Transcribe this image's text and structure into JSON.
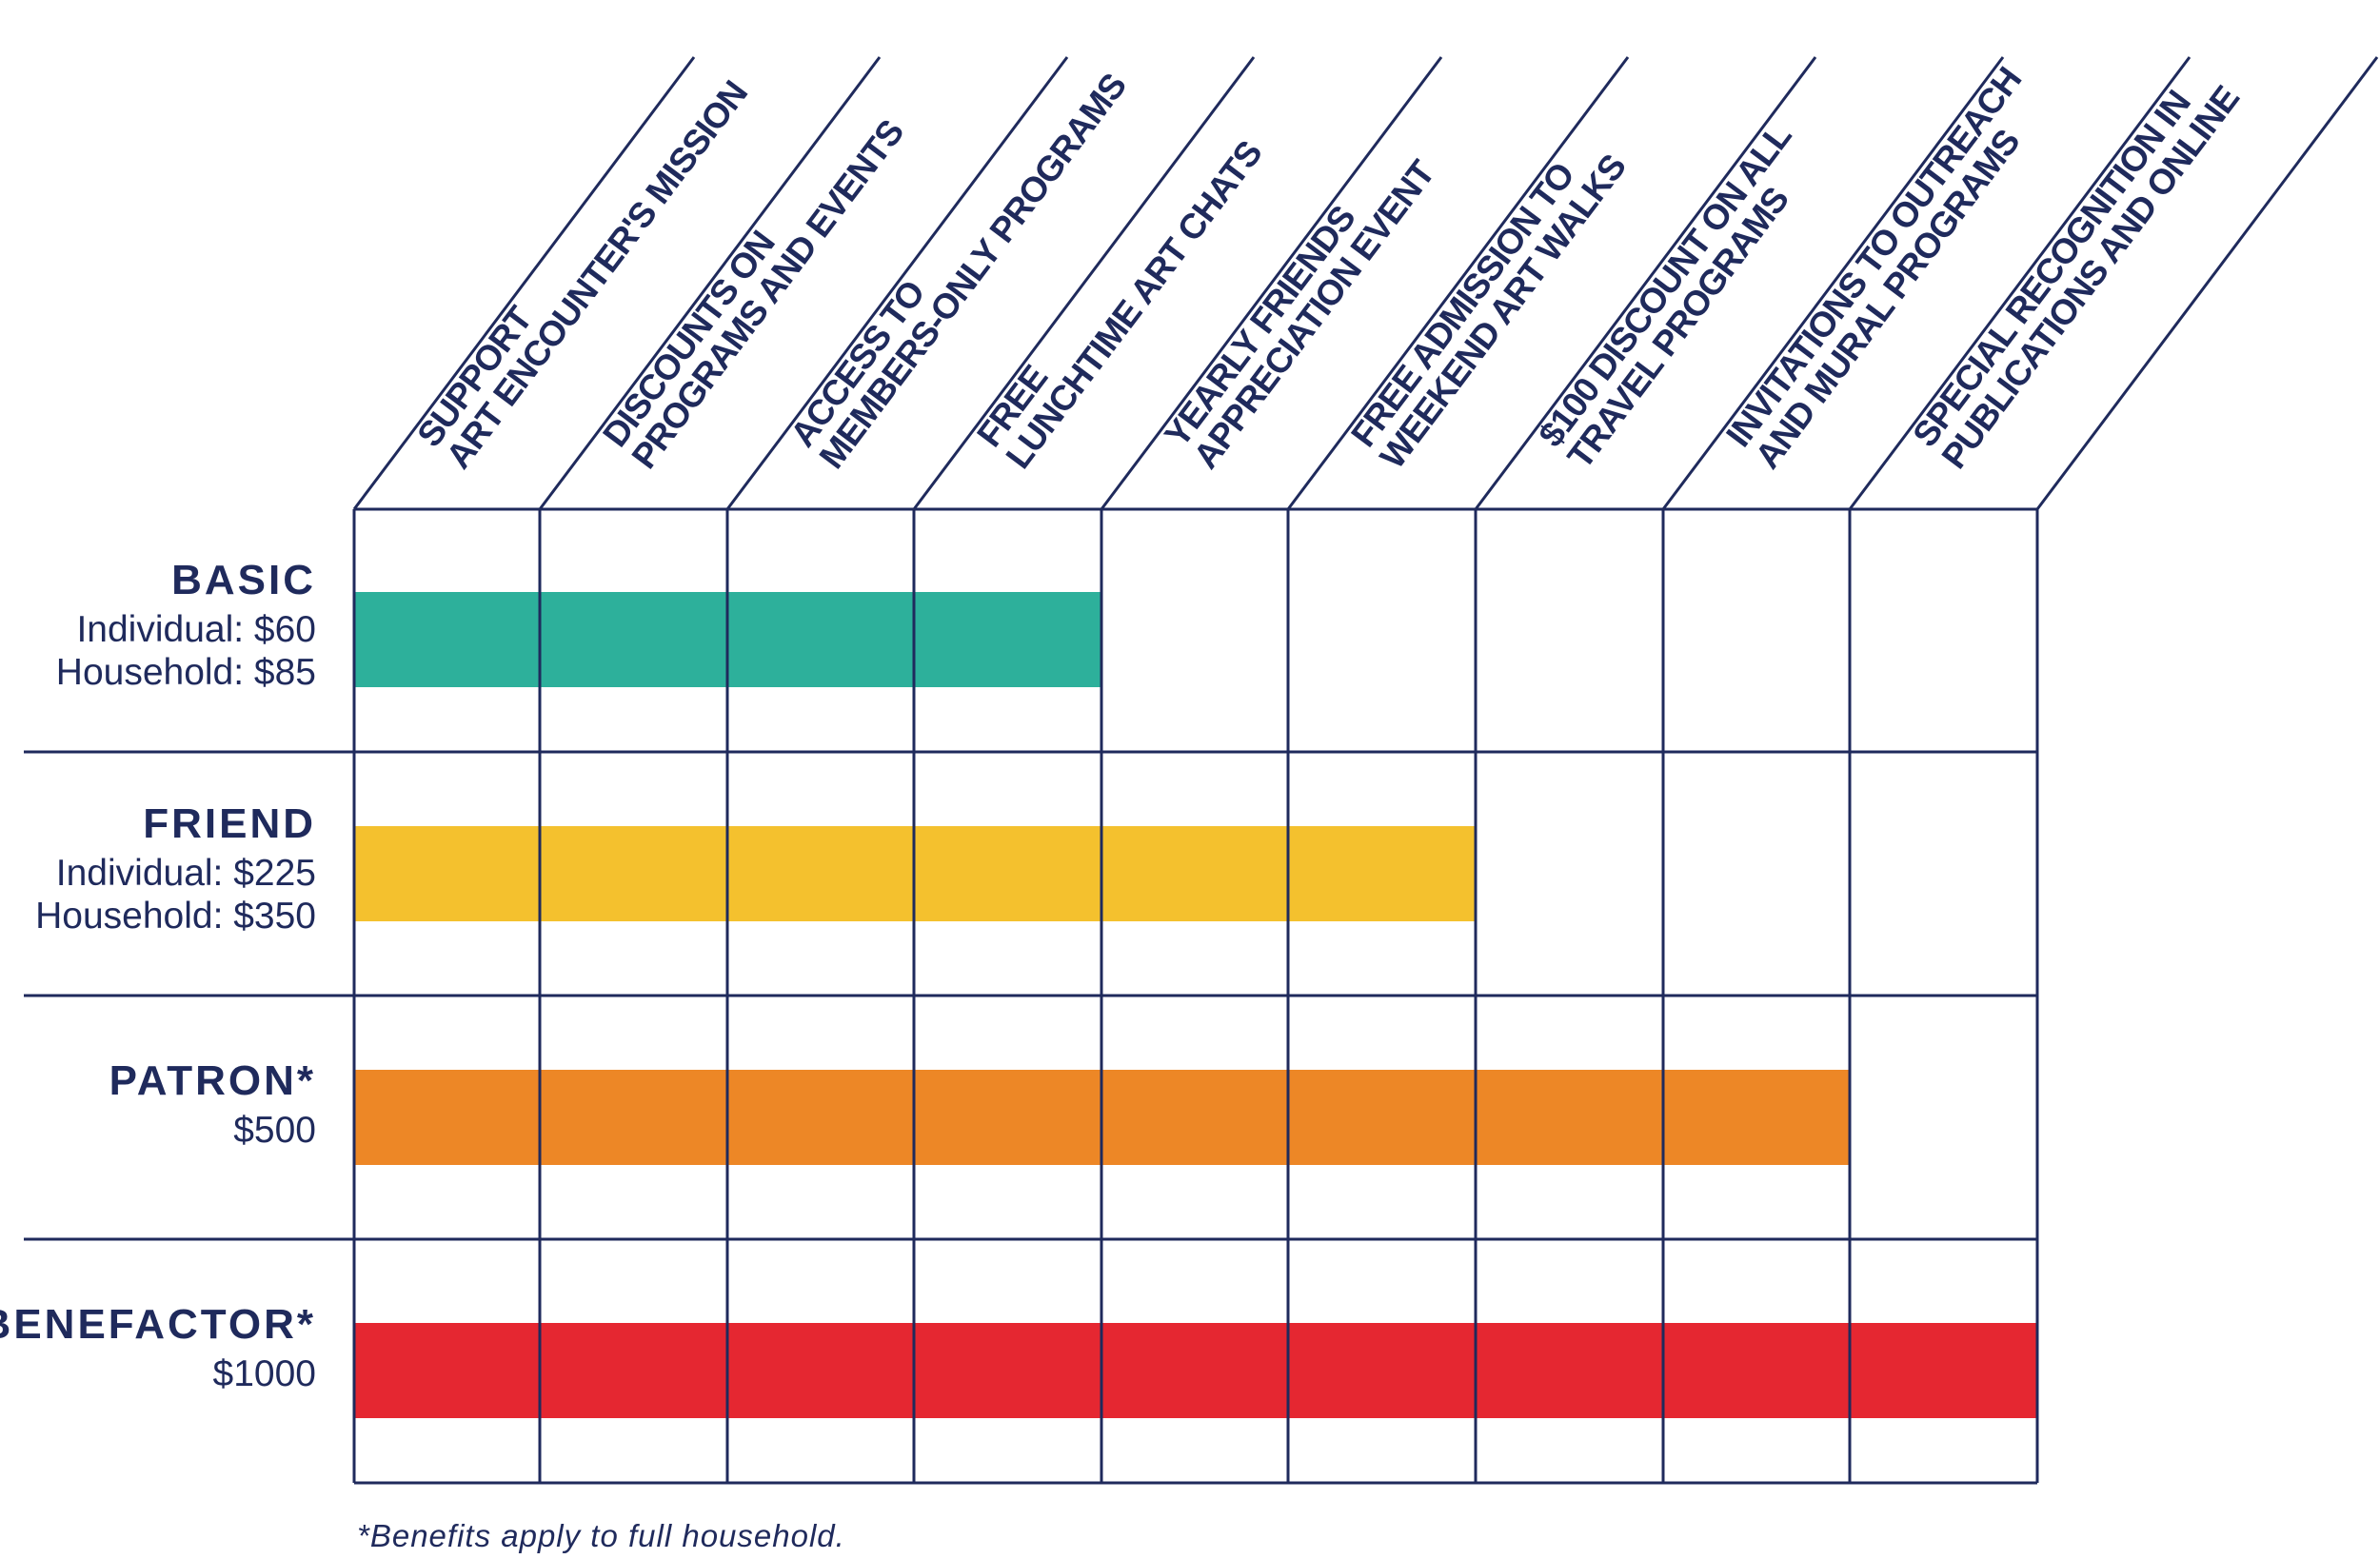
{
  "chart_data": {
    "type": "table",
    "title": "",
    "benefits": [
      [
        "SUPPORT",
        "ART ENCOUNTER'S MISSION"
      ],
      [
        "DISCOUNTS ON",
        "PROGRAMS AND EVENTS"
      ],
      [
        "ACCESS TO",
        "MEMBERS-ONLY PROGRAMS"
      ],
      [
        "FREE",
        "LUNCHTIME ART CHATS"
      ],
      [
        "YEARLY FRIENDS",
        "APPRECIATION EVENT"
      ],
      [
        "FREE ADMISSION TO",
        "WEEKEND ART WALKS"
      ],
      [
        "$100 DISCOUNT ON ALL",
        "TRAVEL PROGRAMS"
      ],
      [
        "INVITATIONS TO OUTREACH",
        "AND MURAL PROGRAMS"
      ],
      [
        "SPECIAL RECOGNITION IN",
        "PUBLICATIONS AND ONLINE"
      ]
    ],
    "tiers": [
      {
        "name": "BASIC",
        "prices": [
          "Individual: $60",
          "Household: $85"
        ],
        "benefits_included": 4,
        "color": "#2db09b"
      },
      {
        "name": "FRIEND",
        "prices": [
          "Individual: $225",
          "Household: $350"
        ],
        "benefits_included": 6,
        "color": "#f4c12e"
      },
      {
        "name": "PATRON*",
        "prices": [
          "$500"
        ],
        "benefits_included": 8,
        "color": "#ed8726"
      },
      {
        "name": "BENEFACTOR*",
        "prices": [
          "$1000"
        ],
        "benefits_included": 9,
        "color": "#e52731"
      }
    ],
    "footnote": "*Benefits apply to full household."
  },
  "colors": {
    "grid": "#1f2a5c",
    "text": "#1f2a5c",
    "background": "#ffffff"
  }
}
